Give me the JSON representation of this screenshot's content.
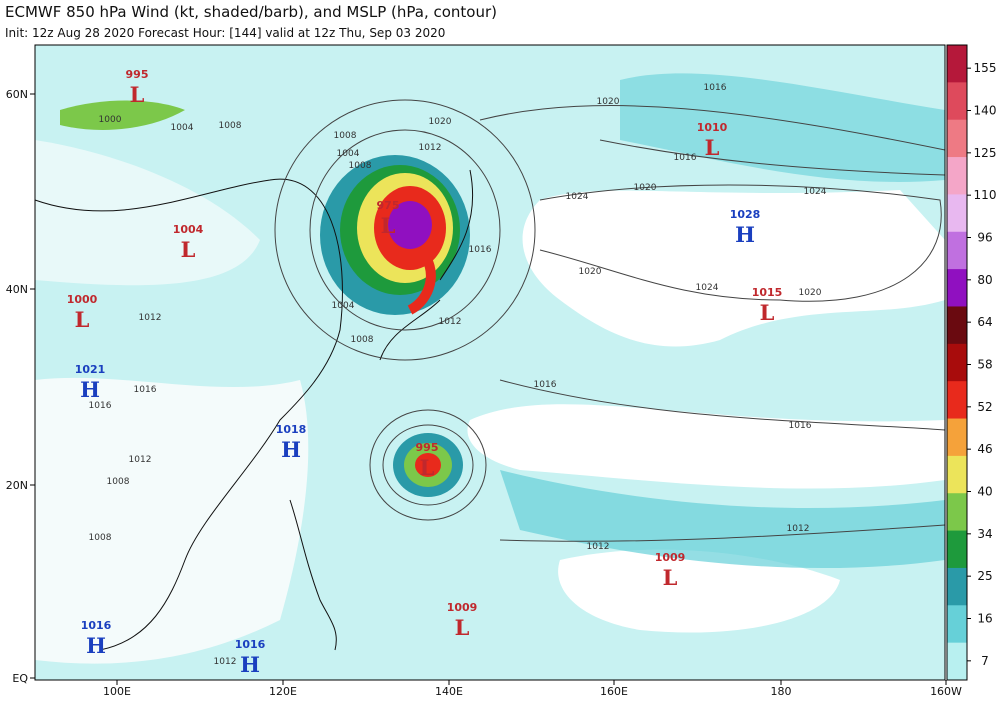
{
  "header": {
    "title": "ECMWF 850 hPa Wind (kt, shaded/barb), and MSLP (hPa, contour)",
    "subtitle": "Init: 12z Aug 28 2020   Forecast Hour: [144]   valid at 12z Thu, Sep 03 2020"
  },
  "map": {
    "lat_labels": [
      "60N",
      "40N",
      "20N",
      "EQ"
    ],
    "lon_labels": [
      "100E",
      "120E",
      "140E",
      "160E",
      "180",
      "160W"
    ],
    "centers": [
      {
        "kind": "L",
        "value": "995",
        "color": "#c0282d"
      },
      {
        "kind": "L",
        "value": "1004",
        "color": "#c0282d"
      },
      {
        "kind": "L",
        "value": "1000",
        "color": "#c0282d"
      },
      {
        "kind": "H",
        "value": "1021",
        "color": "#1a3fbf"
      },
      {
        "kind": "L",
        "value": "975",
        "color": "#c0282d"
      },
      {
        "kind": "H",
        "value": "1018",
        "color": "#1a3fbf"
      },
      {
        "kind": "L",
        "value": "995",
        "color": "#c0282d"
      },
      {
        "kind": "L",
        "value": "1009",
        "color": "#c0282d"
      },
      {
        "kind": "H",
        "value": "1016",
        "color": "#1a3fbf"
      },
      {
        "kind": "H",
        "value": "1016",
        "color": "#1a3fbf"
      },
      {
        "kind": "L",
        "value": "1009",
        "color": "#c0282d"
      },
      {
        "kind": "L",
        "value": "1010",
        "color": "#c0282d"
      },
      {
        "kind": "H",
        "value": "1028",
        "color": "#1a3fbf"
      },
      {
        "kind": "L",
        "value": "1015",
        "color": "#c0282d"
      }
    ],
    "isobar_labels": [
      "1000",
      "1004",
      "1008",
      "1008",
      "1004",
      "1020",
      "1012",
      "1016",
      "1020",
      "1024",
      "1016",
      "1012",
      "1020",
      "1024",
      "1020",
      "1024",
      "1020",
      "1016",
      "1016",
      "1012",
      "1012",
      "1008",
      "1004",
      "1008",
      "1012",
      "1016",
      "1016",
      "1012",
      "1008",
      "1008",
      "1012",
      "1016"
    ]
  },
  "colorbar": {
    "labels": [
      155,
      140,
      125,
      110,
      96,
      80,
      64,
      58,
      52,
      46,
      40,
      34,
      25,
      16,
      7
    ],
    "colors": [
      "#b5183a",
      "#de4a5c",
      "#ee7a84",
      "#f4a6c8",
      "#e8b8f0",
      "#c070e0",
      "#9010c0",
      "#6a0a10",
      "#a80c0c",
      "#e82a1c",
      "#f5a23a",
      "#ece45a",
      "#7cc84a",
      "#1e9a3c",
      "#2a9aa8",
      "#66d0d8",
      "#b8f0f0"
    ]
  }
}
